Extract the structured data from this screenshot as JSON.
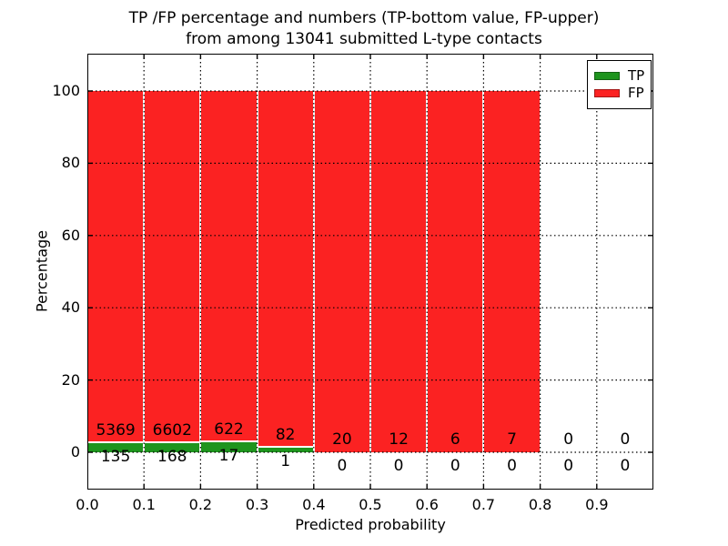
{
  "figure": {
    "title_line1": "TP /FP percentage and numbers (TP-bottom value, FP-upper)",
    "title_line2": "from among 13041 submitted L-type contacts"
  },
  "chart_data": {
    "type": "bar",
    "subtype": "stacked-percentage-histogram",
    "title": "TP /FP percentage and numbers (TP-bottom value, FP-upper) from among 13041 submitted L-type contacts",
    "xlabel": "Predicted probability",
    "ylabel": "Percentage",
    "xlim": [
      0.0,
      1.0
    ],
    "ylim": [
      -10,
      110
    ],
    "x_tick_labels": [
      "0.0",
      "0.1",
      "0.2",
      "0.3",
      "0.4",
      "0.5",
      "0.6",
      "0.7",
      "0.8",
      "0.9"
    ],
    "y_tick_values": [
      0,
      20,
      40,
      60,
      80,
      100
    ],
    "bin_width": 0.1,
    "bin_starts": [
      0.0,
      0.1,
      0.2,
      0.3,
      0.4,
      0.5,
      0.6,
      0.7,
      0.8,
      0.9
    ],
    "series": [
      {
        "name": "TP",
        "color": "#1e941e",
        "values": [
          135,
          168,
          17,
          1,
          0,
          0,
          0,
          0,
          0,
          0
        ]
      },
      {
        "name": "FP",
        "color": "#fb2222",
        "values": [
          5369,
          6602,
          622,
          82,
          20,
          12,
          6,
          7,
          0,
          0
        ]
      }
    ],
    "annotations_note": "TP count shown below axis, FP count shown above green bar top",
    "total_contacts": 13041,
    "grid": true,
    "grid_style": "dotted",
    "legend_position": "upper right",
    "colors": {
      "tp": "#1e941e",
      "fp": "#fb2222",
      "grid": "#000000",
      "background": "#ffffff"
    }
  }
}
